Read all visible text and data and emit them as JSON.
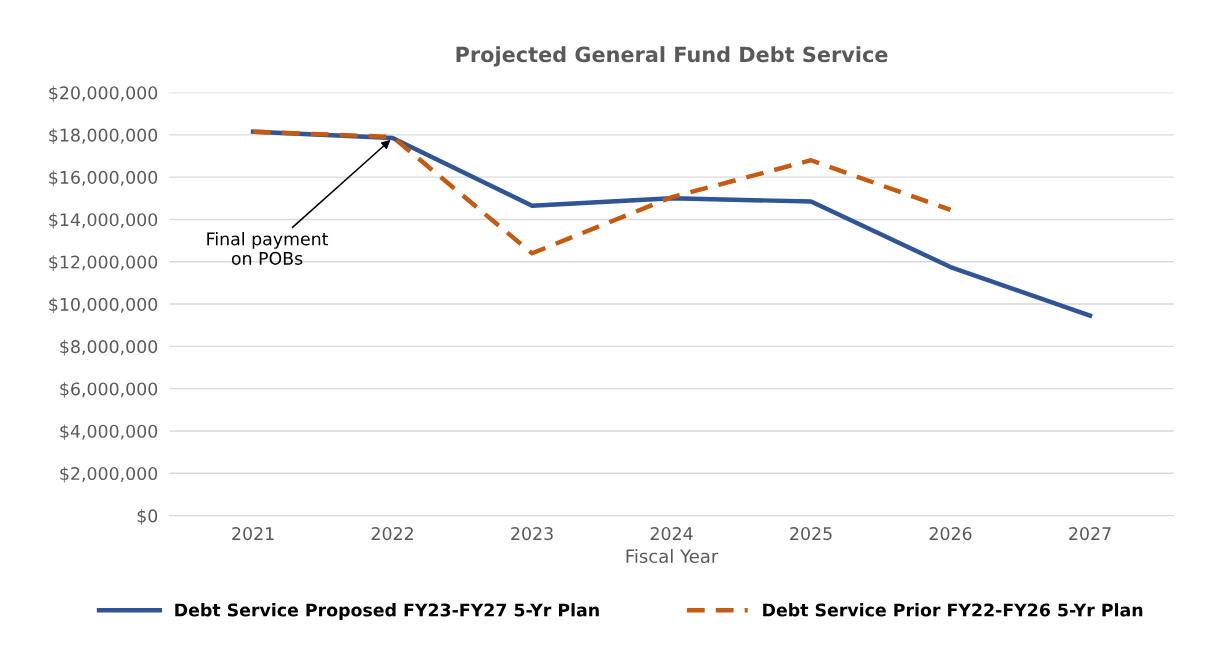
{
  "chart_data": {
    "type": "line",
    "title": "Projected General Fund Debt Service",
    "xlabel": "Fiscal Year",
    "categories": [
      "2021",
      "2022",
      "2023",
      "2024",
      "2025",
      "2026",
      "2027"
    ],
    "series": [
      {
        "name": "Debt Service Proposed FY23-FY27 5-Yr Plan",
        "color": "#2f5597",
        "line_style": "solid",
        "values": [
          18150000,
          17850000,
          14650000,
          15000000,
          14850000,
          11750000,
          9450000
        ]
      },
      {
        "name": "Debt Service Prior FY22-FY26 5-Yr Plan",
        "color": "#c55a11",
        "line_style": "dashed",
        "values": [
          18150000,
          17900000,
          12400000,
          15050000,
          16800000,
          14450000,
          null
        ]
      }
    ],
    "ylim": [
      0,
      20000000
    ],
    "yticks": [
      {
        "value": 0,
        "label": "$0"
      },
      {
        "value": 2000000,
        "label": "$2,000,000"
      },
      {
        "value": 4000000,
        "label": "$4,000,000"
      },
      {
        "value": 6000000,
        "label": "$6,000,000"
      },
      {
        "value": 8000000,
        "label": "$8,000,000"
      },
      {
        "value": 10000000,
        "label": "$10,000,000"
      },
      {
        "value": 12000000,
        "label": "$12,000,000"
      },
      {
        "value": 14000000,
        "label": "$14,000,000"
      },
      {
        "value": 16000000,
        "label": "$16,000,000"
      },
      {
        "value": 18000000,
        "label": "$18,000,000"
      },
      {
        "value": 20000000,
        "label": "$20,000,000"
      }
    ],
    "annotations": [
      {
        "text": "Final payment\non POBs",
        "x": "2022",
        "y": 17850000
      }
    ],
    "grid": "y",
    "legend": "bottom",
    "marker": "none"
  }
}
